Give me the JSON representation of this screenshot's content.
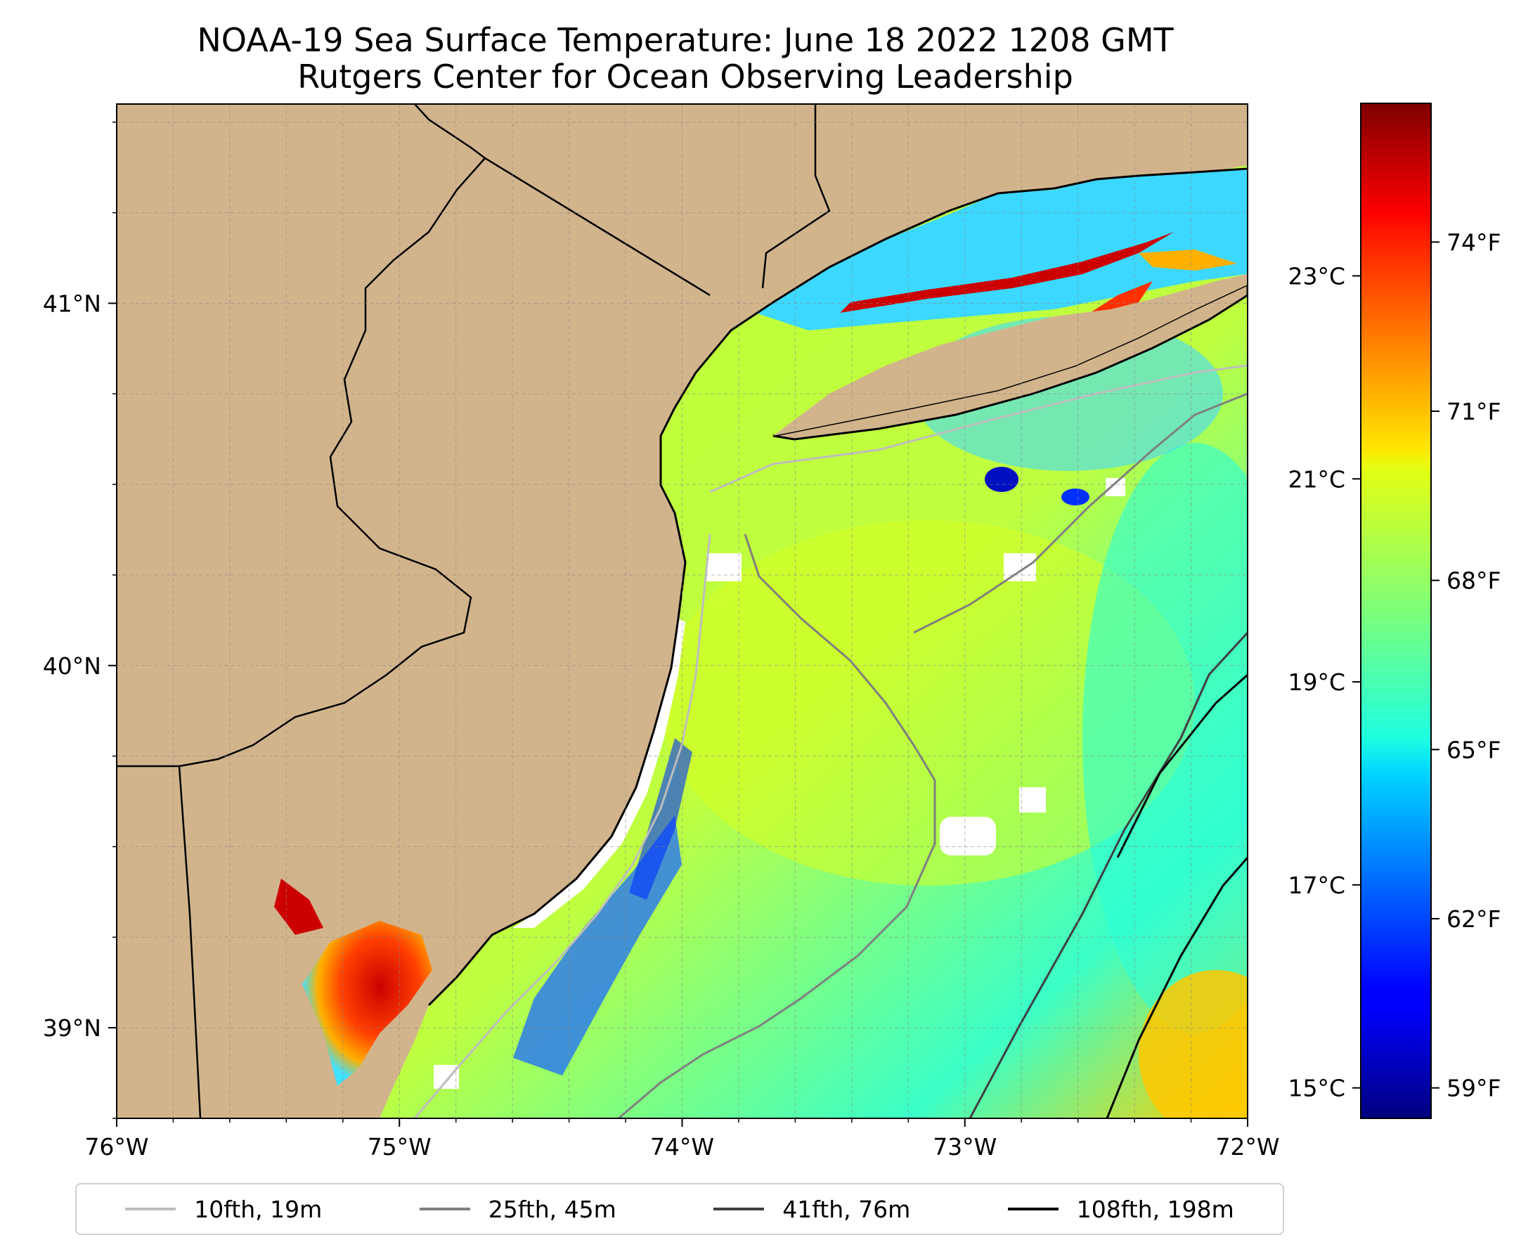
{
  "title": {
    "line1": "NOAA-19 Sea Surface Temperature: June 18 2022 1208 GMT",
    "line2": "Rutgers Center for Ocean Observing Leadership"
  },
  "map": {
    "lon_range": [
      -76,
      -72
    ],
    "lat_range": [
      38.75,
      41.55
    ],
    "lon_ticks": [
      -76,
      -75,
      -74,
      -73,
      -72
    ],
    "lon_labels": [
      "76°W",
      "75°W",
      "74°W",
      "73°W",
      "72°W"
    ],
    "lat_ticks": [
      39,
      40,
      41
    ],
    "lat_labels": [
      "39°N",
      "40°N",
      "41°N"
    ],
    "gridlines": true,
    "land_color": "#d2b48c"
  },
  "colorbar": {
    "colormap": "jet",
    "celsius_range": [
      14.7,
      24.7
    ],
    "celsius_ticks": [
      15,
      17,
      19,
      21,
      23
    ],
    "celsius_labels": [
      "15°C",
      "17°C",
      "19°C",
      "21°C",
      "23°C"
    ],
    "fahrenheit_ticks": [
      59,
      62,
      65,
      68,
      71,
      74
    ],
    "fahrenheit_labels": [
      "59°F",
      "62°F",
      "65°F",
      "68°F",
      "71°F",
      "74°F"
    ]
  },
  "legend": {
    "items": [
      {
        "label": "10fth, 19m",
        "color": "#bdbdbd"
      },
      {
        "label": "25fth, 45m",
        "color": "#7f7f7f"
      },
      {
        "label": "41fth, 76m",
        "color": "#3f3f3f"
      },
      {
        "label": "108fth, 198m",
        "color": "#000000"
      }
    ]
  }
}
